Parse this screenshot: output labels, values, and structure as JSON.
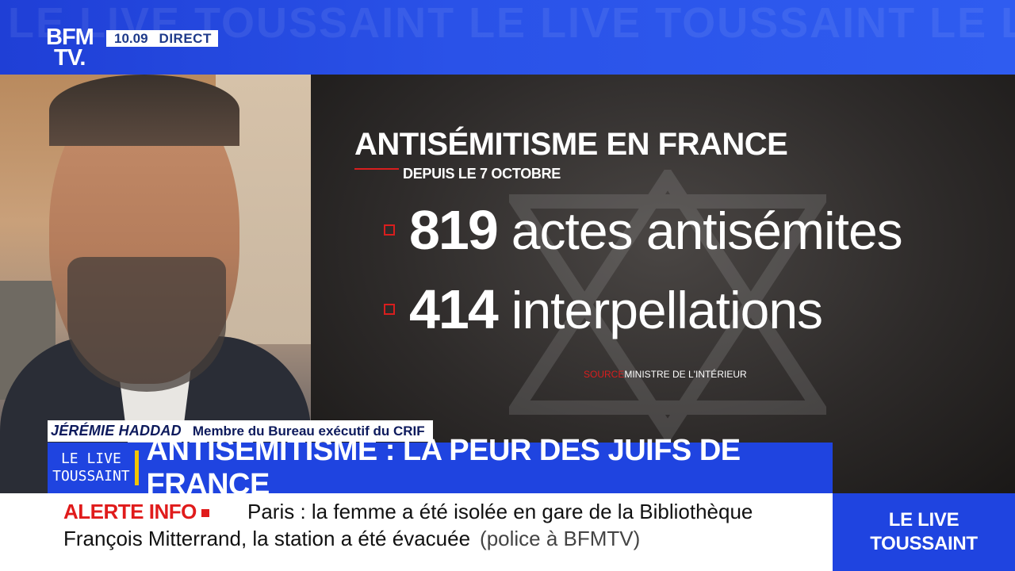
{
  "topbar": {
    "watermark": "LE LIVE TOUSSAINT LE LIVE TOUSSAINT LE LIVE TOUSSAINT LE LIVE TOUSSAINT",
    "logo_line1": "BFM",
    "logo_line2": "TV.",
    "time": "10.09",
    "live_label": "DIRECT"
  },
  "graphic": {
    "title": "ANTISÉMITISME EN FRANCE",
    "subtitle": "DEPUIS LE 7 OCTOBRE",
    "stats": [
      {
        "value": "819",
        "label": "actes antisémites"
      },
      {
        "value": "414",
        "label": "interpellations"
      }
    ],
    "source_label": "SOURCE",
    "source_text": "MINISTRE DE L'INTÉRIEUR"
  },
  "guest": {
    "name": "JÉRÉMIE HADDAD",
    "role": "Membre du Bureau exécutif du CRIF"
  },
  "headline": {
    "show_line1": "LE LIVE",
    "show_line2": "TOUSSAINT",
    "text": "ANTISÉMITISME : LA PEUR DES JUIFS DE FRANCE"
  },
  "ticker": {
    "alert_label": "ALERTE INFO",
    "line1": "Paris : la femme a été isolée en gare de la Bibliothèque",
    "line2": "François Mitterrand, la station a été évacuée",
    "credit": "(police à BFMTV)"
  },
  "corner": {
    "line1": "LE LIVE",
    "line2": "TOUSSAINT"
  },
  "colors": {
    "brand_blue": "#1f44e0",
    "accent_red": "#d81e1e",
    "divider_yellow": "#f2c400"
  }
}
